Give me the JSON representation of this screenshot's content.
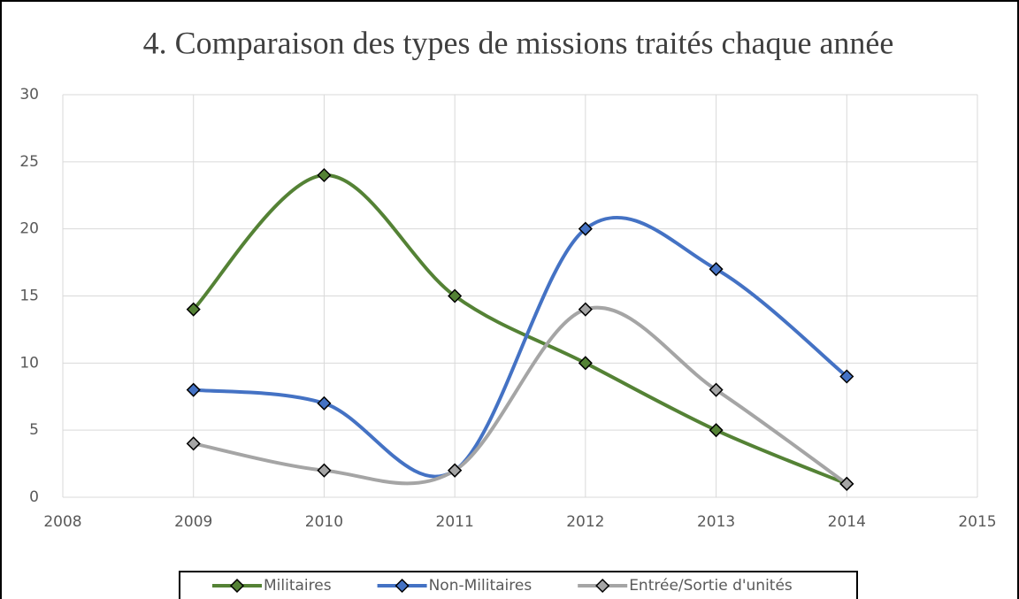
{
  "chart_data": {
    "type": "line",
    "title": "4. Comparaison des types de missions traités chaque année",
    "x": [
      2009,
      2010,
      2011,
      2012,
      2013,
      2014
    ],
    "series": [
      {
        "name": "Militaires",
        "color": "#548235",
        "values": [
          14,
          24,
          15,
          10,
          5,
          1
        ]
      },
      {
        "name": "Non-Militaires",
        "color": "#4472c4",
        "values": [
          8,
          7,
          2,
          20,
          17,
          9
        ]
      },
      {
        "name": "Entrée/Sortie d'unités",
        "color": "#a5a5a5",
        "values": [
          4,
          2,
          2,
          14,
          8,
          1
        ]
      }
    ],
    "xlim": [
      2008,
      2015
    ],
    "xticks": [
      2008,
      2009,
      2010,
      2011,
      2012,
      2013,
      2014,
      2015
    ],
    "ylim": [
      0,
      30
    ],
    "yticks": [
      0,
      5,
      10,
      15,
      20,
      25,
      30
    ],
    "grid": true,
    "smooth": true,
    "legend": "bottom"
  }
}
